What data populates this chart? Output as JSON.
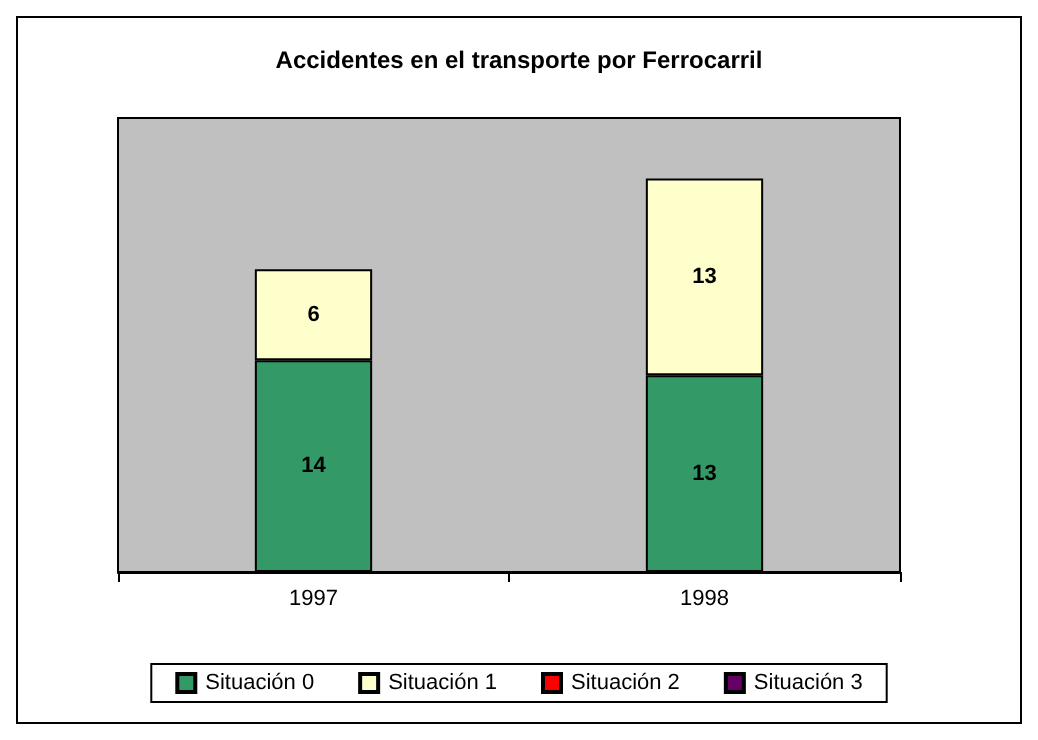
{
  "chart_data": {
    "type": "bar",
    "title": "Accidentes en el transporte por Ferrocarril",
    "categories": [
      "1997",
      "1998"
    ],
    "stacked": true,
    "series": [
      {
        "name": "Situación 0",
        "color": "#339966",
        "values": [
          14,
          13
        ],
        "value_labels": [
          "14",
          "13"
        ]
      },
      {
        "name": "Situación 1",
        "color": "#ffffcc",
        "values": [
          6,
          13
        ],
        "value_labels": [
          "6",
          "13"
        ]
      },
      {
        "name": "Situación 2",
        "color": "#ff0000",
        "values": [
          0,
          0
        ],
        "value_labels": [
          null,
          null
        ]
      },
      {
        "name": "Situación 3",
        "color": "#660066",
        "values": [
          0,
          0
        ],
        "value_labels": [
          null,
          null
        ]
      }
    ],
    "legend": "bottom"
  }
}
